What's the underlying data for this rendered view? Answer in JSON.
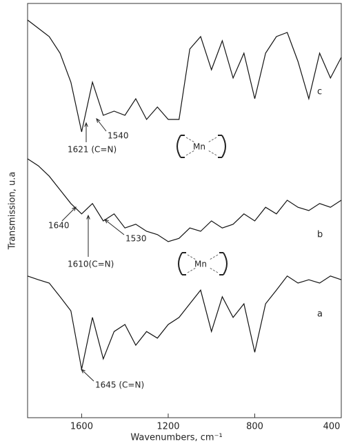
{
  "chart_data": {
    "type": "line",
    "x_label": "Wavenumbers, cm⁻¹",
    "y_label": "Transmission, u.a",
    "x": [
      1850,
      1800,
      1750,
      1700,
      1650,
      1600,
      1550,
      1500,
      1450,
      1400,
      1350,
      1300,
      1250,
      1200,
      1150,
      1100,
      1050,
      1000,
      950,
      900,
      850,
      800,
      750,
      700,
      650,
      600,
      550,
      500,
      450,
      400
    ],
    "xlim": [
      1850,
      400
    ],
    "xticks": [
      1600,
      1200,
      800,
      400
    ],
    "ylim": [
      0,
      100
    ],
    "series": [
      {
        "name": "c",
        "color": "#111111",
        "values": [
          96,
          94,
          92,
          88,
          81,
          69,
          81,
          73,
          74,
          73,
          77,
          72,
          75,
          72,
          72,
          89,
          92,
          84,
          91,
          82,
          88,
          77,
          88,
          92,
          93,
          86,
          77,
          88,
          82,
          87
        ]
      },
      {
        "name": "b",
        "color": "#111111",
        "values": [
          62.5,
          60.8,
          58.3,
          55,
          51.7,
          49.2,
          51.7,
          47.5,
          49.2,
          45.8,
          46.7,
          45,
          44.2,
          42.5,
          43.3,
          45.8,
          45,
          47.5,
          45.8,
          46.7,
          49.2,
          47.5,
          50.8,
          49.2,
          52.5,
          50.8,
          50,
          51.7,
          50.8,
          52.5
        ]
      },
      {
        "name": "a",
        "color": "#111111",
        "values": [
          34.2,
          33.3,
          32.5,
          29.2,
          25.8,
          11.7,
          24.2,
          14.2,
          20.8,
          22.5,
          17.5,
          20.8,
          19.2,
          22.5,
          24.2,
          27.5,
          30.8,
          20.8,
          29.2,
          24.2,
          27.5,
          15.8,
          27.5,
          30.8,
          34.2,
          32.5,
          33.3,
          32.5,
          34.2,
          33.3
        ]
      }
    ],
    "annotations": [
      "1621 (C=N)",
      "1540",
      "Mn",
      "1640",
      "1610(C=N)",
      "1530",
      "Mn",
      "1645 (C=N)"
    ]
  }
}
